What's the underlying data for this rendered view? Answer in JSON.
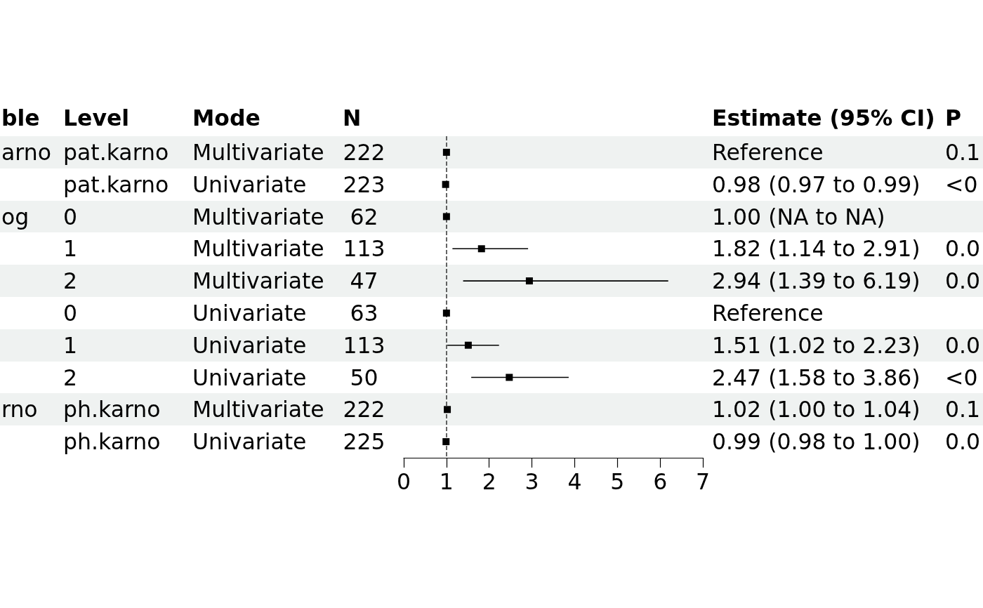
{
  "chart_data": {
    "type": "scatter",
    "orientation": "horizontal",
    "categories": [
      null,
      null,
      null,
      null,
      null,
      null,
      null,
      null,
      null,
      null
    ],
    "values": [
      1,
      0.98,
      1.0,
      1.82,
      2.94,
      1,
      1.51,
      2.47,
      1.02,
      0.99
    ],
    "errors": [
      null,
      null,
      null,
      [
        1.14,
        2.91
      ],
      [
        1.39,
        6.19
      ],
      null,
      [
        1.02,
        2.23
      ],
      [
        1.58,
        3.86
      ],
      null,
      null
    ],
    "color": "#000000",
    "marker": "square",
    "xlim": [
      0,
      7
    ],
    "xticks": [
      0,
      1,
      2,
      3,
      4,
      5,
      6,
      7
    ],
    "tick_labels": "x",
    "ref_lines": [
      {
        "axis": "x",
        "value": 1,
        "line_style": "dashed",
        "color": "#333333"
      }
    ],
    "annotations": [
      "ble",
      "Level",
      "Mode",
      "N",
      "Estimate (95% CI)",
      "P",
      "arno",
      "pat.karno",
      "Multivariate",
      "222",
      "Reference",
      "0.1",
      "pat.karno",
      "Univariate",
      "223",
      "0.98 (0.97 to 0.99)",
      "<0",
      "og",
      "0",
      "Multivariate",
      "62",
      "1.00 (NA to NA)",
      "1",
      "Multivariate",
      "113",
      "1.82 (1.14 to 2.91)",
      "0.0",
      "2",
      "Multivariate",
      "47",
      "2.94 (1.39 to 6.19)",
      "0.0",
      "0",
      "Univariate",
      "63",
      "Reference",
      "1",
      "Univariate",
      "113",
      "1.51 (1.02 to 2.23)",
      "0.0",
      "2",
      "Univariate",
      "50",
      "2.47 (1.58 to 3.86)",
      "<0",
      "rno",
      "ph.karno",
      "Multivariate",
      "222",
      "1.02 (1.00 to 1.04)",
      "0.1",
      "ph.karno",
      "Univariate",
      "225",
      "0.99 (0.98 to 1.00)",
      "0.0"
    ]
  }
}
